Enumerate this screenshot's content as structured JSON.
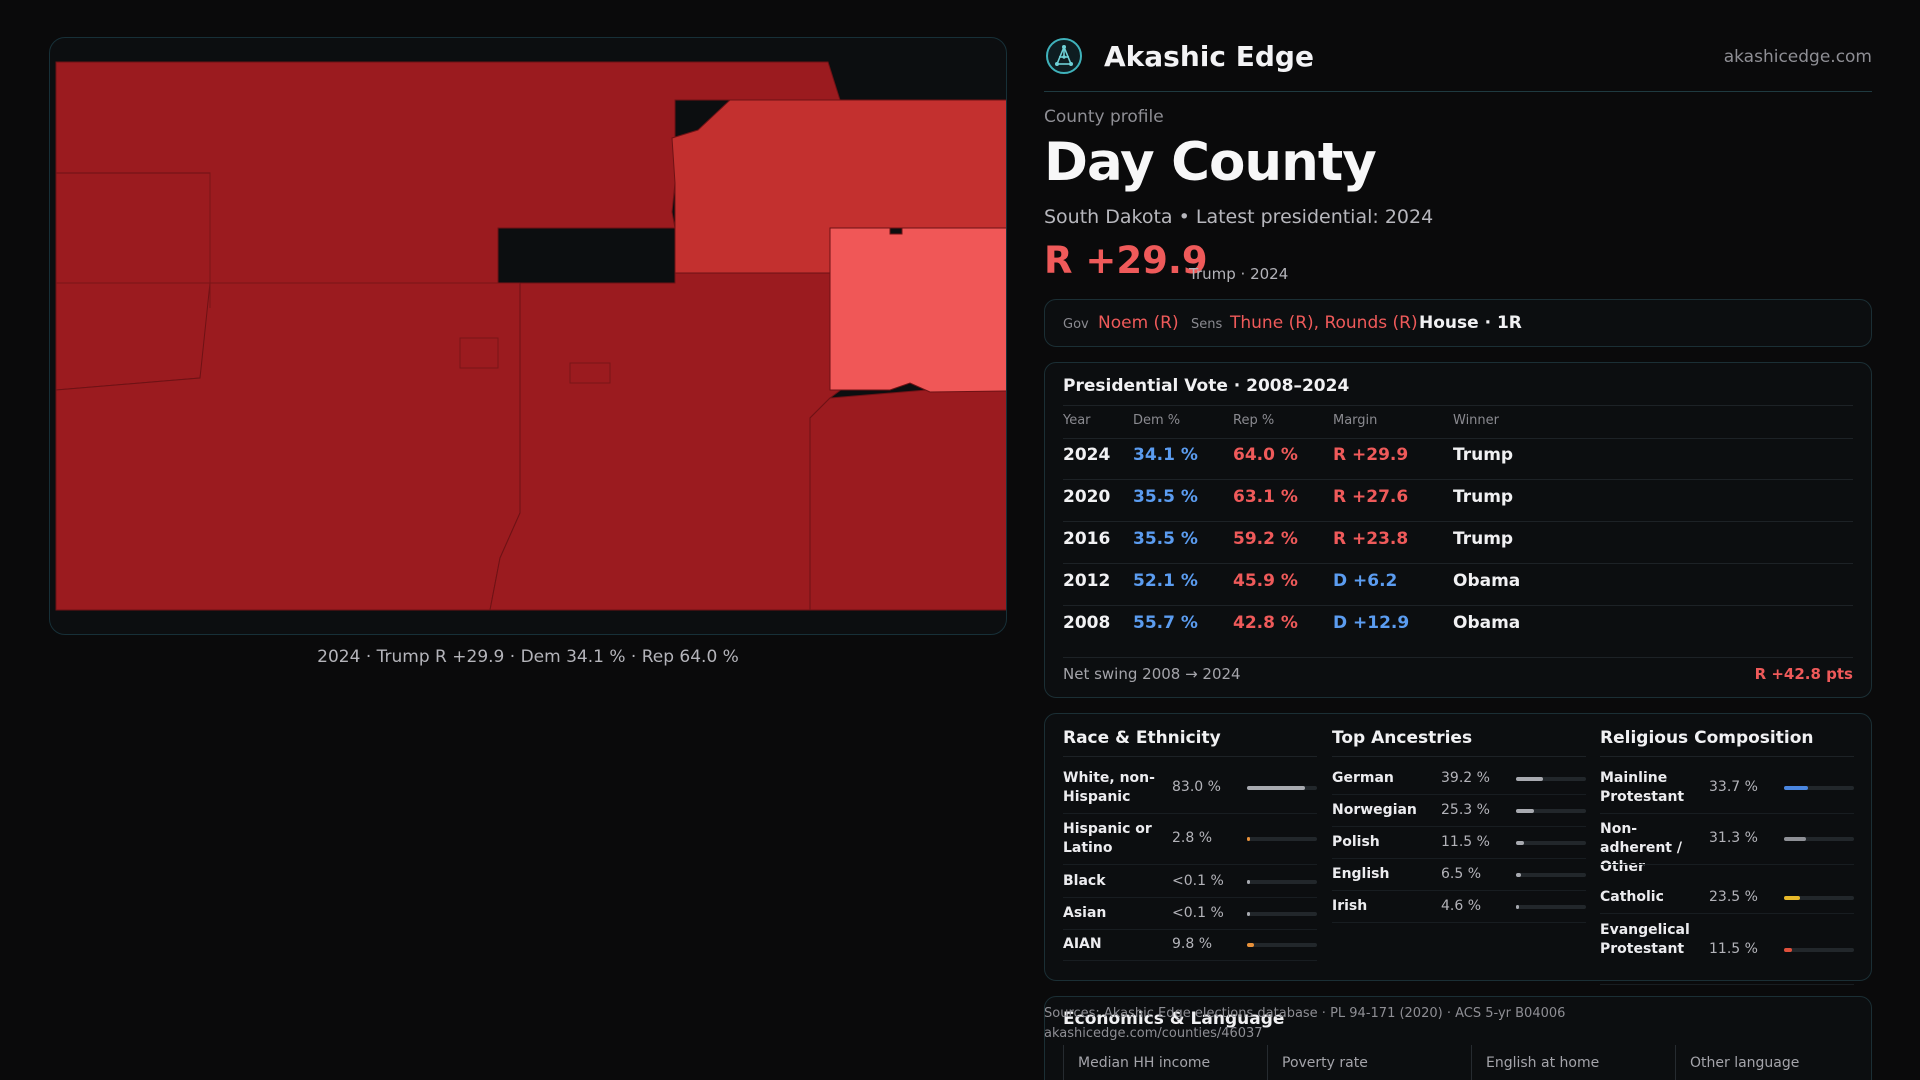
{
  "map": {
    "caption": "2024 · Trump R +29.9 · Dem 34.1 % · Rep 64.0 %",
    "colors": {
      "strong_rep": "#9b1b1f",
      "medium_rep": "#c3302f",
      "light_rep": "#f05757"
    }
  },
  "brand": {
    "name": "Akashic Edge",
    "domain": "akashicedge.com",
    "logo_icon": "network-globe-icon"
  },
  "profile": {
    "eyebrow": "County profile",
    "name": "Day County",
    "subtitle": "South Dakota • Latest presidential: 2024",
    "margin": "R +29.9",
    "margin_note": "Trump · 2024"
  },
  "officials": {
    "gov_label": "Gov",
    "gov": "Noem (R)",
    "sens_label": "Sens",
    "sens": "Thune (R), Rounds (R)",
    "house": "House · 1R"
  },
  "presidential": {
    "title": "Presidential Vote · 2008–2024",
    "headers": [
      "Year",
      "Dem %",
      "Rep %",
      "Margin",
      "Winner"
    ],
    "rows": [
      {
        "year": "2024",
        "dem": "34.1 %",
        "rep": "64.0 %",
        "margin": "R +29.9",
        "margin_party": "R",
        "winner": "Trump"
      },
      {
        "year": "2020",
        "dem": "35.5 %",
        "rep": "63.1 %",
        "margin": "R +27.6",
        "margin_party": "R",
        "winner": "Trump"
      },
      {
        "year": "2016",
        "dem": "35.5 %",
        "rep": "59.2 %",
        "margin": "R +23.8",
        "margin_party": "R",
        "winner": "Trump"
      },
      {
        "year": "2012",
        "dem": "52.1 %",
        "rep": "45.9 %",
        "margin": "D +6.2",
        "margin_party": "D",
        "winner": "Obama"
      },
      {
        "year": "2008",
        "dem": "55.7 %",
        "rep": "42.8 %",
        "margin": "D +12.9",
        "margin_party": "D",
        "winner": "Obama"
      }
    ],
    "swing_label": "Net swing 2008 → 2024",
    "swing_value": "R +42.8 pts"
  },
  "race": {
    "title": "Race & Ethnicity",
    "items": [
      {
        "label": "White, non-Hispanic",
        "value": "83.0 %",
        "fraction": 0.83,
        "color": "#a8aab0"
      },
      {
        "label": "Hispanic or Latino",
        "value": "2.8 %",
        "fraction": 0.028,
        "color": "#e8913a"
      },
      {
        "label": "Black",
        "value": "<0.1 %",
        "fraction": 0.001,
        "color": "#a8aab0"
      },
      {
        "label": "Asian",
        "value": "<0.1 %",
        "fraction": 0.001,
        "color": "#a8aab0"
      },
      {
        "label": "AIAN",
        "value": "9.8 %",
        "fraction": 0.098,
        "color": "#e8913a"
      }
    ]
  },
  "ancestry": {
    "title": "Top Ancestries",
    "items": [
      {
        "label": "German",
        "value": "39.2 %",
        "fraction": 0.392,
        "color": "#a8aab0"
      },
      {
        "label": "Norwegian",
        "value": "25.3 %",
        "fraction": 0.253,
        "color": "#a8aab0"
      },
      {
        "label": "Polish",
        "value": "11.5 %",
        "fraction": 0.115,
        "color": "#a8aab0"
      },
      {
        "label": "English",
        "value": "6.5 %",
        "fraction": 0.065,
        "color": "#a8aab0"
      },
      {
        "label": "Irish",
        "value": "4.6 %",
        "fraction": 0.046,
        "color": "#a8aab0"
      }
    ]
  },
  "religion": {
    "title": "Religious Composition",
    "items": [
      {
        "label": "Mainline Protestant",
        "value": "33.7 %",
        "fraction": 0.337,
        "color": "#4a86e0"
      },
      {
        "label": "Non-adherent / Other",
        "value": "31.3 %",
        "fraction": 0.313,
        "color": "#8e9096"
      },
      {
        "label": "Catholic",
        "value": "23.5 %",
        "fraction": 0.235,
        "color": "#e8b92a"
      },
      {
        "label": "Evangelical Protestant",
        "value": "11.5 %",
        "fraction": 0.115,
        "color": "#e0503c"
      }
    ]
  },
  "economics": {
    "title": "Economics & Language",
    "labels": [
      "Median HH income",
      "Poverty rate",
      "English at home",
      "Other language"
    ]
  },
  "sources": {
    "line1": "Sources: Akashic Edge elections database · PL 94-171 (2020) · ACS 5-yr B04006",
    "line2": "akashicedge.com/counties/46037"
  }
}
